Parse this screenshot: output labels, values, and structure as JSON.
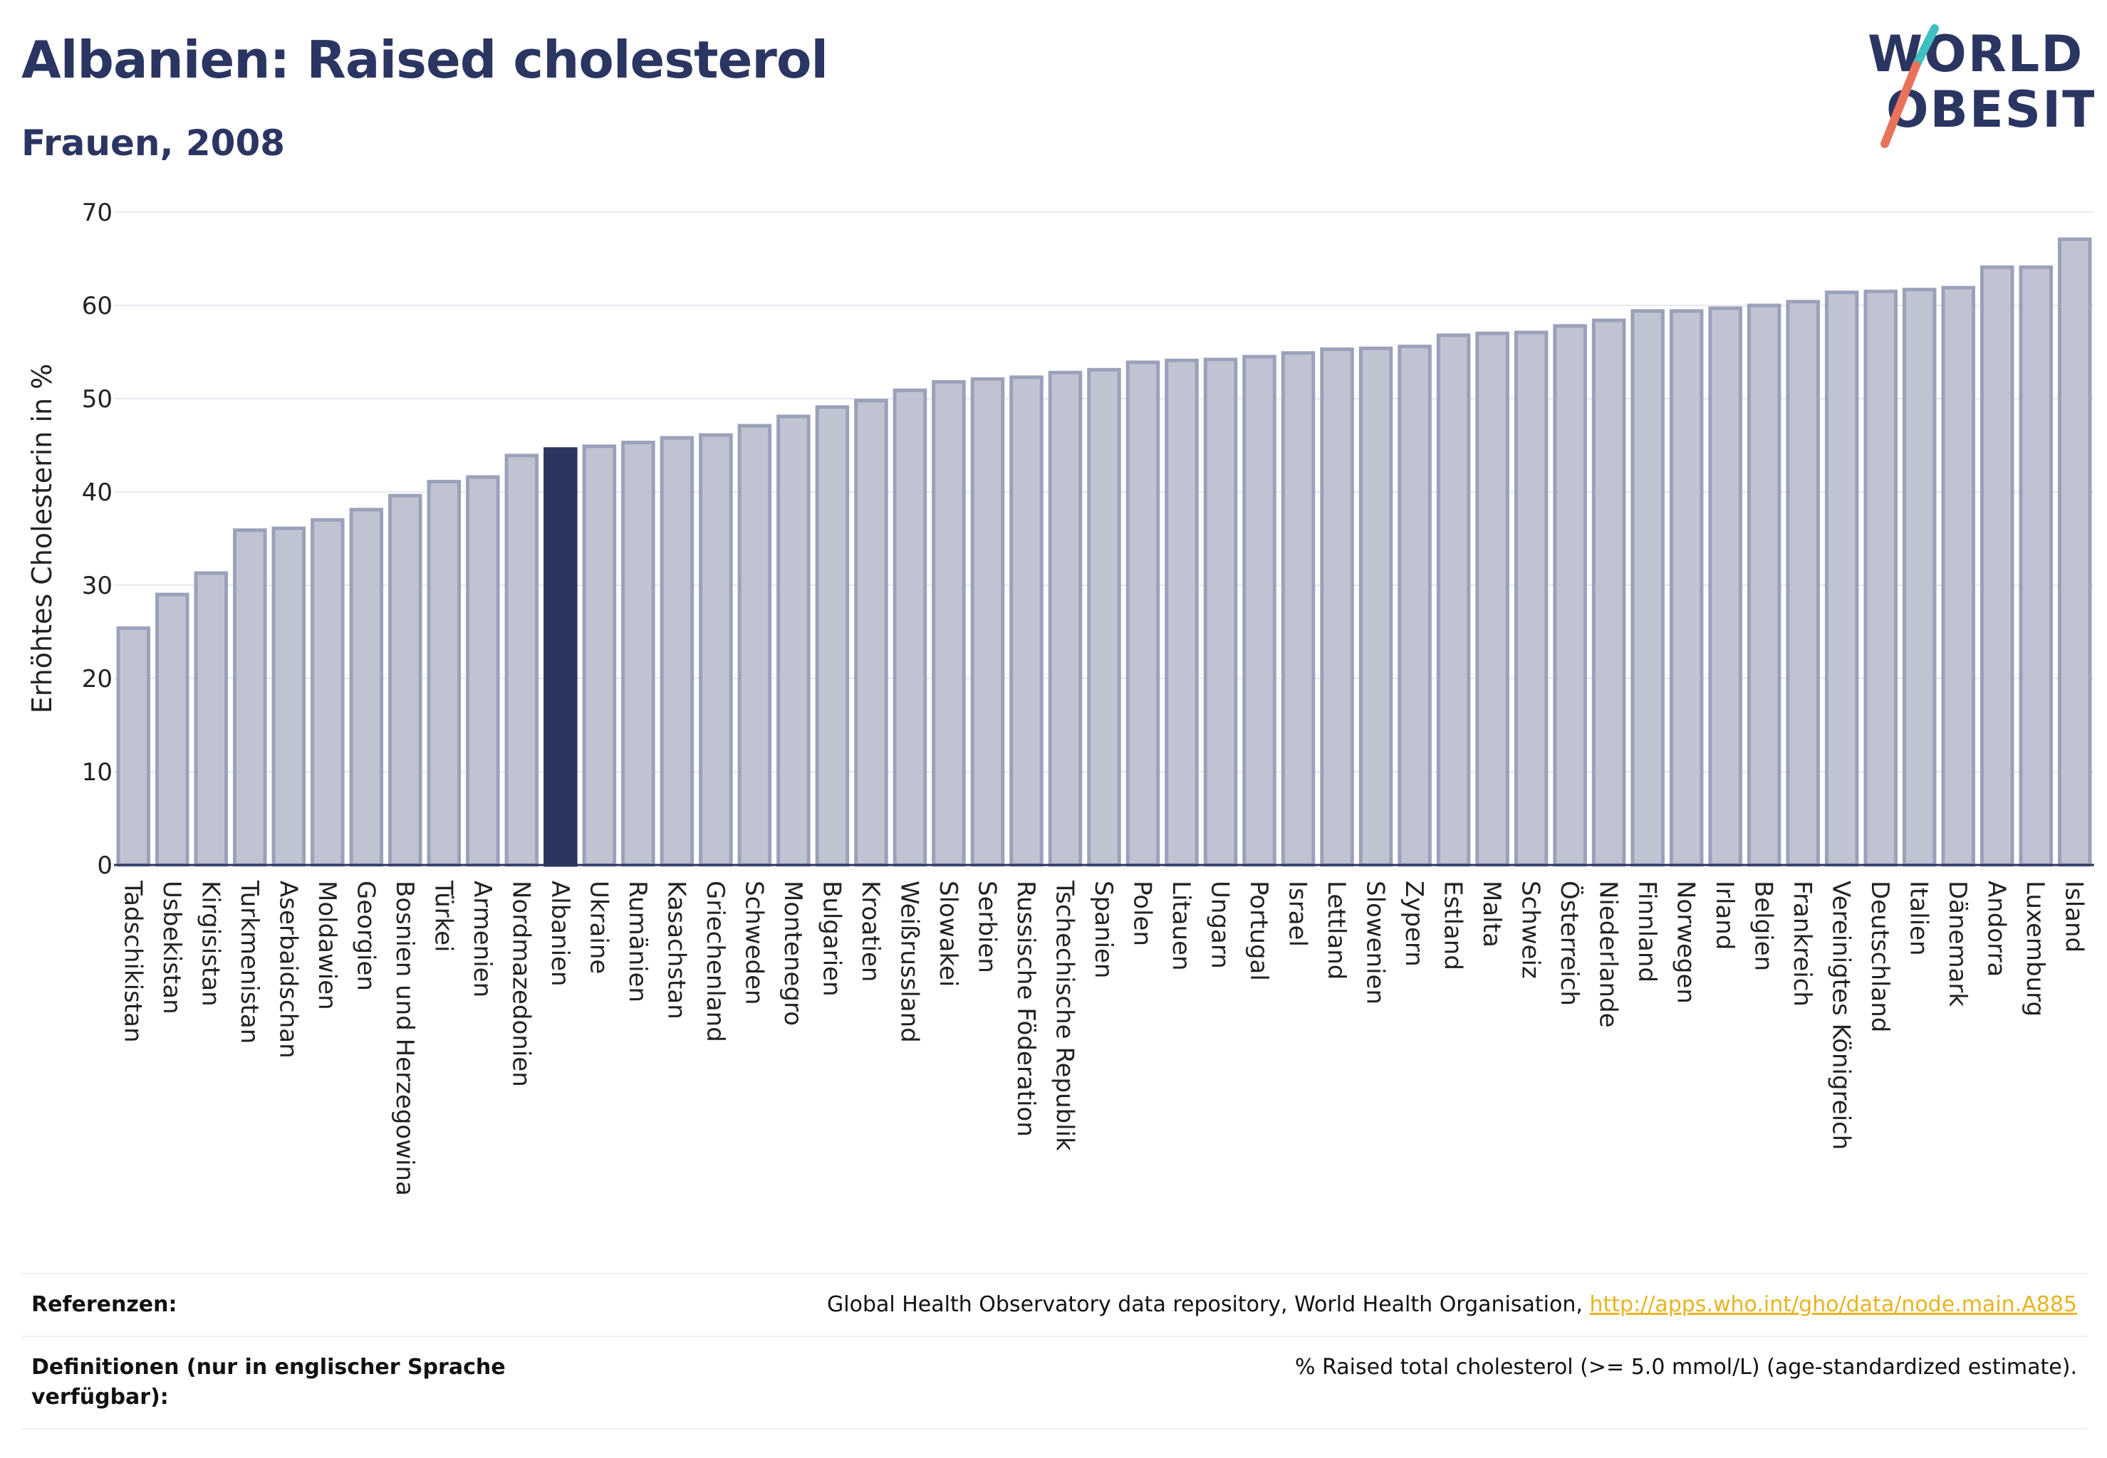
{
  "header": {
    "title": "Albanien: Raised cholesterol",
    "subtitle": "Frauen, 2008"
  },
  "logo": {
    "line1": "WORLD",
    "line2": "OBESITY"
  },
  "colors": {
    "bar_default": "#c0c4d2",
    "bar_outline": "#9ba1b9",
    "bar_highlight": "#2b3562",
    "brand_navy": "#2b3562",
    "logo_teal": "#3fbfbf",
    "logo_coral": "#e8735a",
    "link": "#e8b321"
  },
  "chart_data": {
    "type": "bar",
    "ylabel": "Erhöhtes Cholesterin in %",
    "xlabel": "",
    "ylim": [
      0,
      70
    ],
    "yticks": [
      0,
      10,
      20,
      30,
      40,
      50,
      60,
      70
    ],
    "grid": true,
    "highlight": "Albanien",
    "categories": [
      "Tadschikistan",
      "Usbekistan",
      "Kirgisistan",
      "Turkmenistan",
      "Aserbaidschan",
      "Moldawien",
      "Georgien",
      "Bosnien und Herzegowina",
      "Türkei",
      "Armenien",
      "Nordmazedonien",
      "Albanien",
      "Ukraine",
      "Rumänien",
      "Kasachstan",
      "Griechenland",
      "Schweden",
      "Montenegro",
      "Bulgarien",
      "Kroatien",
      "Weißrussland",
      "Slowakei",
      "Serbien",
      "Russische Föderation",
      "Tschechische Republik",
      "Spanien",
      "Polen",
      "Litauen",
      "Ungarn",
      "Portugal",
      "Israel",
      "Lettland",
      "Slowenien",
      "Zypern",
      "Estland",
      "Malta",
      "Schweiz",
      "Österreich",
      "Niederlande",
      "Finnland",
      "Norwegen",
      "Irland",
      "Belgien",
      "Frankreich",
      "Vereinigtes Königreich",
      "Deutschland",
      "Italien",
      "Dänemark",
      "Andorra",
      "Luxemburg",
      "Island"
    ],
    "values": [
      25.4,
      29.0,
      31.3,
      35.9,
      36.1,
      37.0,
      38.1,
      39.6,
      41.1,
      41.6,
      43.9,
      44.6,
      44.9,
      45.3,
      45.8,
      46.1,
      47.1,
      48.1,
      49.1,
      49.8,
      50.9,
      51.8,
      52.1,
      52.3,
      52.8,
      53.1,
      53.9,
      54.1,
      54.2,
      54.5,
      54.9,
      55.3,
      55.4,
      55.6,
      56.8,
      57.0,
      57.1,
      57.8,
      58.4,
      59.4,
      59.4,
      59.7,
      60.0,
      60.4,
      61.4,
      61.5,
      61.7,
      61.9,
      64.1,
      64.1,
      67.1
    ]
  },
  "footer": {
    "references_label": "Referenzen:",
    "references_text": "Global Health Observatory data repository, World Health Organisation, ",
    "references_link": "http://apps.who.int/gho/data/node.main.A885",
    "definitions_label": "Definitionen (nur in englischer Sprache verfügbar):",
    "definitions_text": "% Raised total cholesterol (>= 5.0 mmol/L) (age-standardized estimate)."
  }
}
